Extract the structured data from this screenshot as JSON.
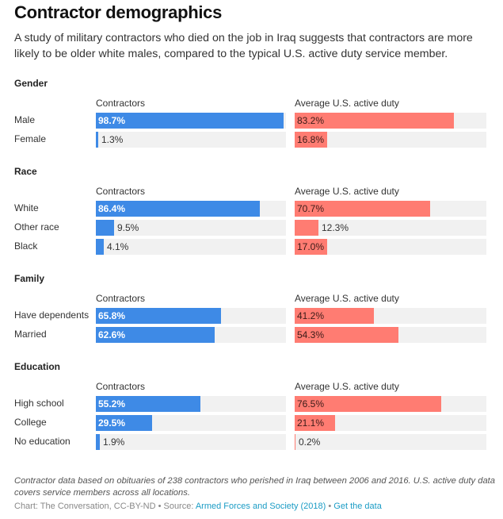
{
  "header": {
    "title": "Contractor demographics",
    "description": "A study of military contractors who died on the job in Iraq suggests that contractors are more likely to be older white males, compared to the typical U.S. active duty service member."
  },
  "colors": {
    "contractors": "#3e8ae6",
    "active_duty": "#ff7c72",
    "track": "#f1f1f1",
    "link": "#1b9cc5"
  },
  "chart_data": {
    "type": "bar",
    "orientation": "horizontal",
    "title": "Contractor demographics",
    "unit": "%",
    "xlim": [
      0,
      100
    ],
    "column_headers": [
      "Contractors",
      "Average U.S. active duty"
    ],
    "groups": [
      {
        "name": "Gender",
        "categories": [
          "Male",
          "Female"
        ],
        "series": [
          {
            "name": "Contractors",
            "values": [
              98.7,
              1.3
            ],
            "labels": [
              "98.7%",
              "1.3%"
            ]
          },
          {
            "name": "Average U.S. active duty",
            "values": [
              83.2,
              16.8
            ],
            "labels": [
              "83.2%",
              "16.8%"
            ]
          }
        ]
      },
      {
        "name": "Race",
        "categories": [
          "White",
          "Other race",
          "Black"
        ],
        "series": [
          {
            "name": "Contractors",
            "values": [
              86.4,
              9.5,
              4.1
            ],
            "labels": [
              "86.4%",
              "9.5%",
              "4.1%"
            ]
          },
          {
            "name": "Average U.S. active duty",
            "values": [
              70.7,
              12.3,
              17.0
            ],
            "labels": [
              "70.7%",
              "12.3%",
              "17.0%"
            ]
          }
        ]
      },
      {
        "name": "Family",
        "categories": [
          "Have dependents",
          "Married"
        ],
        "series": [
          {
            "name": "Contractors",
            "values": [
              65.8,
              62.6
            ],
            "labels": [
              "65.8%",
              "62.6%"
            ]
          },
          {
            "name": "Average U.S. active duty",
            "values": [
              41.2,
              54.3
            ],
            "labels": [
              "41.2%",
              "54.3%"
            ]
          }
        ]
      },
      {
        "name": "Education",
        "categories": [
          "High school",
          "College",
          "No education"
        ],
        "series": [
          {
            "name": "Contractors",
            "values": [
              55.2,
              29.5,
              1.9
            ],
            "labels": [
              "55.2%",
              "29.5%",
              "1.9%"
            ]
          },
          {
            "name": "Average U.S. active duty",
            "values": [
              76.5,
              21.1,
              0.2
            ],
            "labels": [
              "76.5%",
              "21.1%",
              "0.2%"
            ]
          }
        ]
      }
    ]
  },
  "footer": {
    "note": "Contractor data based on obituaries of 238 contractors who perished in Iraq between 2006 and 2016. U.S. active duty data covers service members across all locations.",
    "credit": "Chart: The Conversation, CC-BY-ND",
    "separator": " • ",
    "source_prefix": "Source: ",
    "source_link": "Armed Forces and Society (2018)",
    "data_link": "Get the data"
  }
}
